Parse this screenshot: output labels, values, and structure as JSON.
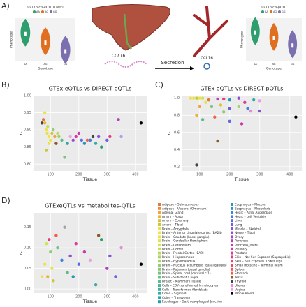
{
  "panel_labels": [
    "A)",
    "B)",
    "C)",
    "D)"
  ],
  "illustration": {
    "liver_gene": "CCL16",
    "arrow": "Secretion",
    "protein": "CCL16"
  },
  "chart_data": [
    {
      "type": "violin",
      "title": "CCL16 cis-eQTL (Liver)",
      "xlabel": "Genotype",
      "ylabel": "Phenotype",
      "categories": [
        "AA",
        "AG",
        "GG"
      ],
      "colors": [
        "#2e9e6e",
        "#e0701f",
        "#7b6fb0"
      ],
      "values": [
        0.4,
        -0.2,
        -0.8
      ],
      "ylim": [
        -1.5,
        1.5
      ]
    },
    {
      "type": "violin",
      "title": "CCL16 cis-pQTL",
      "xlabel": "Genotype",
      "ylabel": "Phenotype",
      "categories": [
        "AA",
        "AG",
        "GG"
      ],
      "colors": [
        "#2e9e6e",
        "#e0701f",
        "#7b6fb0"
      ],
      "values": [
        0.5,
        0.1,
        -0.4
      ],
      "ylim": [
        -1.5,
        1.5
      ]
    },
    {
      "type": "scatter",
      "title": "GTEx eQTLs vs DIRECT eQTLs",
      "xlabel": "Tissue",
      "ylabel": "rₛ",
      "xlim": [
        40,
        440
      ],
      "xticks": [
        100,
        200,
        300,
        400
      ],
      "ylim": [
        0.78,
        1.0
      ],
      "yticks": [
        {
          "value": 0.8,
          "label": "0.80"
        },
        0.85,
        {
          "value": 0.9,
          "label": "0.90"
        },
        0.95,
        {
          "value": 1.0,
          "label": "1.00"
        }
      ],
      "x": [
        75,
        80,
        85,
        88,
        90,
        95,
        100,
        105,
        110,
        115,
        120,
        125,
        130,
        140,
        150,
        160,
        170,
        180,
        190,
        200,
        210,
        220,
        230,
        240,
        250,
        260,
        270,
        280,
        300,
        310,
        340,
        350,
        420,
        80,
        70,
        95,
        85
      ],
      "y": [
        0.93,
        0.92,
        0.9,
        0.89,
        0.91,
        0.88,
        0.87,
        0.89,
        0.9,
        0.88,
        0.86,
        0.89,
        0.88,
        0.87,
        0.82,
        0.86,
        0.88,
        0.87,
        0.88,
        0.89,
        0.87,
        0.86,
        0.87,
        0.87,
        0.88,
        0.86,
        0.88,
        0.85,
        0.87,
        0.88,
        0.93,
        0.88,
        0.92,
        0.95,
        0.92,
        0.86,
        0.84
      ],
      "colors": [
        "#e8743b",
        "#e7b53b",
        "#f2e04a",
        "#dfe64d",
        "#c8dd55",
        "#efe34c",
        "#e9e549",
        "#d9c23a",
        "#95cc72",
        "#f4a340",
        "#8b5a2b",
        "#bcd95b",
        "#a3d16a",
        "#60b98d",
        "#7ac37f",
        "#2ba6a9",
        "#f0a0e0",
        "#944bd2",
        "#dc3b92",
        "#c43daf",
        "#5b6ae4",
        "#1f98bb",
        "#f25f48",
        "#3a84da",
        "#444444",
        "#37aba2",
        "#8154da",
        "#22a06b",
        "#6e5ee0",
        "#e63c82",
        "#b540bc",
        "#a3a3e6",
        "#000000",
        "#e9e549",
        "#444444",
        "#f2e04a",
        "#c8c838"
      ]
    },
    {
      "type": "scatter",
      "title": "GTEx eQTLs vs DIRECT pQTLs",
      "xlabel": "Tissue",
      "ylabel": "rₛ",
      "xlim": [
        40,
        440
      ],
      "xticks": [
        100,
        200,
        300,
        400
      ],
      "ylim": [
        0.15,
        1.03
      ],
      "yticks": [
        0.2,
        0.4,
        0.6,
        0.8,
        {
          "value": 1.0,
          "label": "1.0"
        }
      ],
      "x": [
        70,
        80,
        90,
        100,
        110,
        130,
        160,
        180,
        200,
        230,
        250,
        280,
        300,
        100,
        140,
        170,
        200,
        230,
        260,
        90,
        110,
        150,
        200,
        240,
        180,
        160,
        270,
        420,
        90,
        120,
        300
      ],
      "y": [
        1.0,
        1.0,
        1.0,
        1.0,
        1.0,
        0.98,
        0.99,
        0.99,
        0.98,
        1.0,
        0.95,
        0.98,
        0.97,
        0.9,
        0.9,
        0.92,
        0.88,
        0.9,
        0.88,
        0.8,
        0.75,
        0.78,
        0.73,
        0.7,
        0.84,
        0.5,
        0.85,
        0.78,
        0.22,
        0.95,
        0.85
      ],
      "colors": [
        "#f2e04a",
        "#e9e549",
        "#c8c838",
        "#efe34c",
        "#d4e24f",
        "#e8743b",
        "#b540bc",
        "#e63c82",
        "#1f98bb",
        "#944bd2",
        "#dc3b92",
        "#2ba6a9",
        "#f0a0e0",
        "#f4a340",
        "#7ac37f",
        "#d9c23a",
        "#6e5ee0",
        "#a3d16a",
        "#3a84da",
        "#e7b53b",
        "#60b98d",
        "#f25f48",
        "#5b6ae4",
        "#c43daf",
        "#95cc72",
        "#8b5a2b",
        "#e68ad8",
        "#000000",
        "#444444",
        "#dfe64d",
        "#8154da"
      ]
    },
    {
      "type": "scatter",
      "title": "GTExeQTLs vs metabolites-QTLs",
      "xlabel": "Tissue",
      "ylabel": "rₛ",
      "xlim": [
        40,
        440
      ],
      "xticks": [
        100,
        200,
        300,
        400
      ],
      "ylim": [
        -0.01,
        0.185
      ],
      "yticks": [
        {
          "value": 0,
          "label": "0.00"
        },
        0.05,
        {
          "value": 0.1,
          "label": "0.10"
        },
        0.15
      ],
      "x": [
        80,
        90,
        95,
        100,
        105,
        110,
        120,
        125,
        140,
        150,
        160,
        170,
        180,
        190,
        200,
        220,
        240,
        260,
        270,
        280,
        300,
        310,
        330,
        350,
        420,
        70,
        85
      ],
      "y": [
        0.06,
        0.03,
        0.12,
        0.09,
        0.05,
        0.02,
        0.13,
        0.1,
        0.07,
        0.15,
        0.04,
        0.08,
        0.03,
        0.11,
        0.06,
        0.09,
        0.07,
        0.01,
        0.13,
        0.12,
        0.05,
        0.08,
        0.03,
        0.1,
        0.06,
        0.03,
        0.11
      ],
      "colors": [
        "#f2e04a",
        "#e7b53b",
        "#e63c82",
        "#95cc72",
        "#dfe64d",
        "#c8c838",
        "#f25f48",
        "#7ac37f",
        "#3a84da",
        "#a3a3a3",
        "#60b98d",
        "#944bd2",
        "#1f98bb",
        "#dc3b92",
        "#5b6ae4",
        "#c43daf",
        "#f0a0e0",
        "#37aba2",
        "#8b5a2b",
        "#22a06b",
        "#b540bc",
        "#8154da",
        "#6e5ee0",
        "#e68ad8",
        "#000000",
        "#efe34c",
        "#d4e24f"
      ]
    }
  ],
  "legend": {
    "names": [
      "Adipose – Subcutaneous",
      "Adipose – Visceral (Omentum)",
      "Adrenal Gland",
      "Artery – Aorta",
      "Artery – Coronary",
      "Artery – Tibial",
      "Brain – Amygdala",
      "Brain – Anterior cingulate cortex (BA24)",
      "Brain – Caudate (basal ganglia)",
      "Brain – Cerebellar Hemisphere",
      "Brain – Cerebellum",
      "Brain – Cortex",
      "Brain – Frontal Cortex (BA9)",
      "Brain – Hippocampus",
      "Brain – Hypothalamus",
      "Brain – Nucleus accumbens (basal ganglia)",
      "Brain – Putamen (basal ganglia)",
      "Brain – Spinal cord (cervical c-1)",
      "Brain – Substantia nigra",
      "Breast – Mammary Tissue",
      "Cells – EBV-transformed lymphocytes",
      "Cells – Transformed fibroblasts",
      "Colon – Sigmoid",
      "Colon – Transverse",
      "Esophagus – Gastroesophageal Junction",
      "Esophagus – Mucosa",
      "Esophagus – Muscularis",
      "Heart – Atrial Appendage",
      "Heart – Left Ventricle",
      "Liver",
      "Lung",
      "Muscle – Skeletal",
      "Nerve – Tibial",
      "Ovary",
      "Pancreas",
      "Pancreas_Islets",
      "Pituitary",
      "Prostate",
      "Skin – Not Sun Exposed (Suprapubic)",
      "Skin – Sun Exposed (Lower leg)",
      "Small Intestine – Terminal Ileum",
      "Spleen",
      "Stomach",
      "Testis",
      "Thyroid",
      "Uterus",
      "Vagina",
      "Whole Blood"
    ],
    "colors": [
      "#e8743b",
      "#f08a3e",
      "#f4a340",
      "#e7b53b",
      "#d9c23a",
      "#c8c838",
      "#f2e04a",
      "#efe34c",
      "#e9e549",
      "#dfe64d",
      "#d4e24f",
      "#c8dd55",
      "#bcd95b",
      "#b0d563",
      "#a3d16a",
      "#95cc72",
      "#88c879",
      "#7ac37f",
      "#6dbe87",
      "#60b98d",
      "#52b594",
      "#44b09b",
      "#37aba2",
      "#2ba6a9",
      "#229fb0",
      "#1f98bb",
      "#2a8fcc",
      "#3a84da",
      "#4a77e2",
      "#5b6ae4",
      "#6e5ee0",
      "#8154da",
      "#944bd2",
      "#a545c8",
      "#b540bc",
      "#c43daf",
      "#d13ba1",
      "#dc3b92",
      "#e63c82",
      "#ee3f72",
      "#f24662",
      "#f45254",
      "#f25f48",
      "#8b5a2b",
      "#444444",
      "#e68ad8",
      "#f0a0e0",
      "#000000"
    ]
  }
}
